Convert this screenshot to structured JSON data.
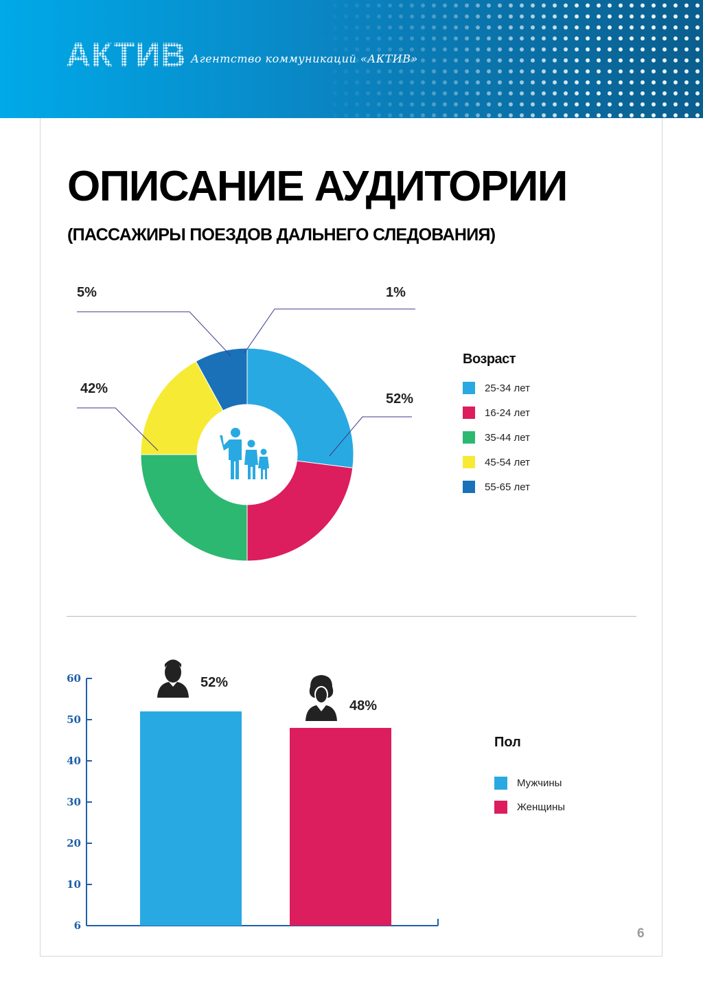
{
  "header": {
    "logo_text": "АКТИВ",
    "tagline": "Агентство коммуникаций «АКТИВ»"
  },
  "page": {
    "title": "ОПИСАНИЕ АУДИТОРИИ",
    "subtitle": "(ПАССАЖИРЫ ПОЕЗДОВ ДАЛЬНЕГО СЛЕДОВАНИЯ)",
    "page_number": "6"
  },
  "colors": {
    "cyan": "#29a9e1",
    "magenta": "#dc1d5e",
    "green": "#2db872",
    "yellow": "#f7ea35",
    "blue": "#1a71b8",
    "axis": "#1f5fa8"
  },
  "chart_data": [
    {
      "type": "pie",
      "variant": "donut",
      "legend_title": "Возраст",
      "legend_position": "right",
      "center_icon": "family-icon",
      "categories": [
        "25-34 лет",
        "16-24 лет",
        "35-44 лет",
        "45-54 лет",
        "55-65 лет"
      ],
      "values": [
        27,
        23,
        25,
        17,
        8
      ],
      "colors": [
        "#29a9e1",
        "#dc1d5e",
        "#2db872",
        "#f7ea35",
        "#1a71b8"
      ],
      "annotations": [
        {
          "text": "52%"
        },
        {
          "text": "42%"
        },
        {
          "text": "5%"
        },
        {
          "text": "1%"
        }
      ]
    },
    {
      "type": "bar",
      "legend_title": "Пол",
      "legend_position": "right",
      "categories": [
        "Мужчины",
        "Женщины"
      ],
      "values": [
        52,
        48
      ],
      "value_labels": [
        "52%",
        "48%"
      ],
      "icons": [
        "man-icon",
        "woman-icon"
      ],
      "colors": [
        "#29a9e1",
        "#dc1d5e"
      ],
      "y_ticks": [
        "6",
        "10",
        "20",
        "30",
        "40",
        "50",
        "60"
      ],
      "ylim": [
        0,
        60
      ],
      "grid": false
    }
  ]
}
